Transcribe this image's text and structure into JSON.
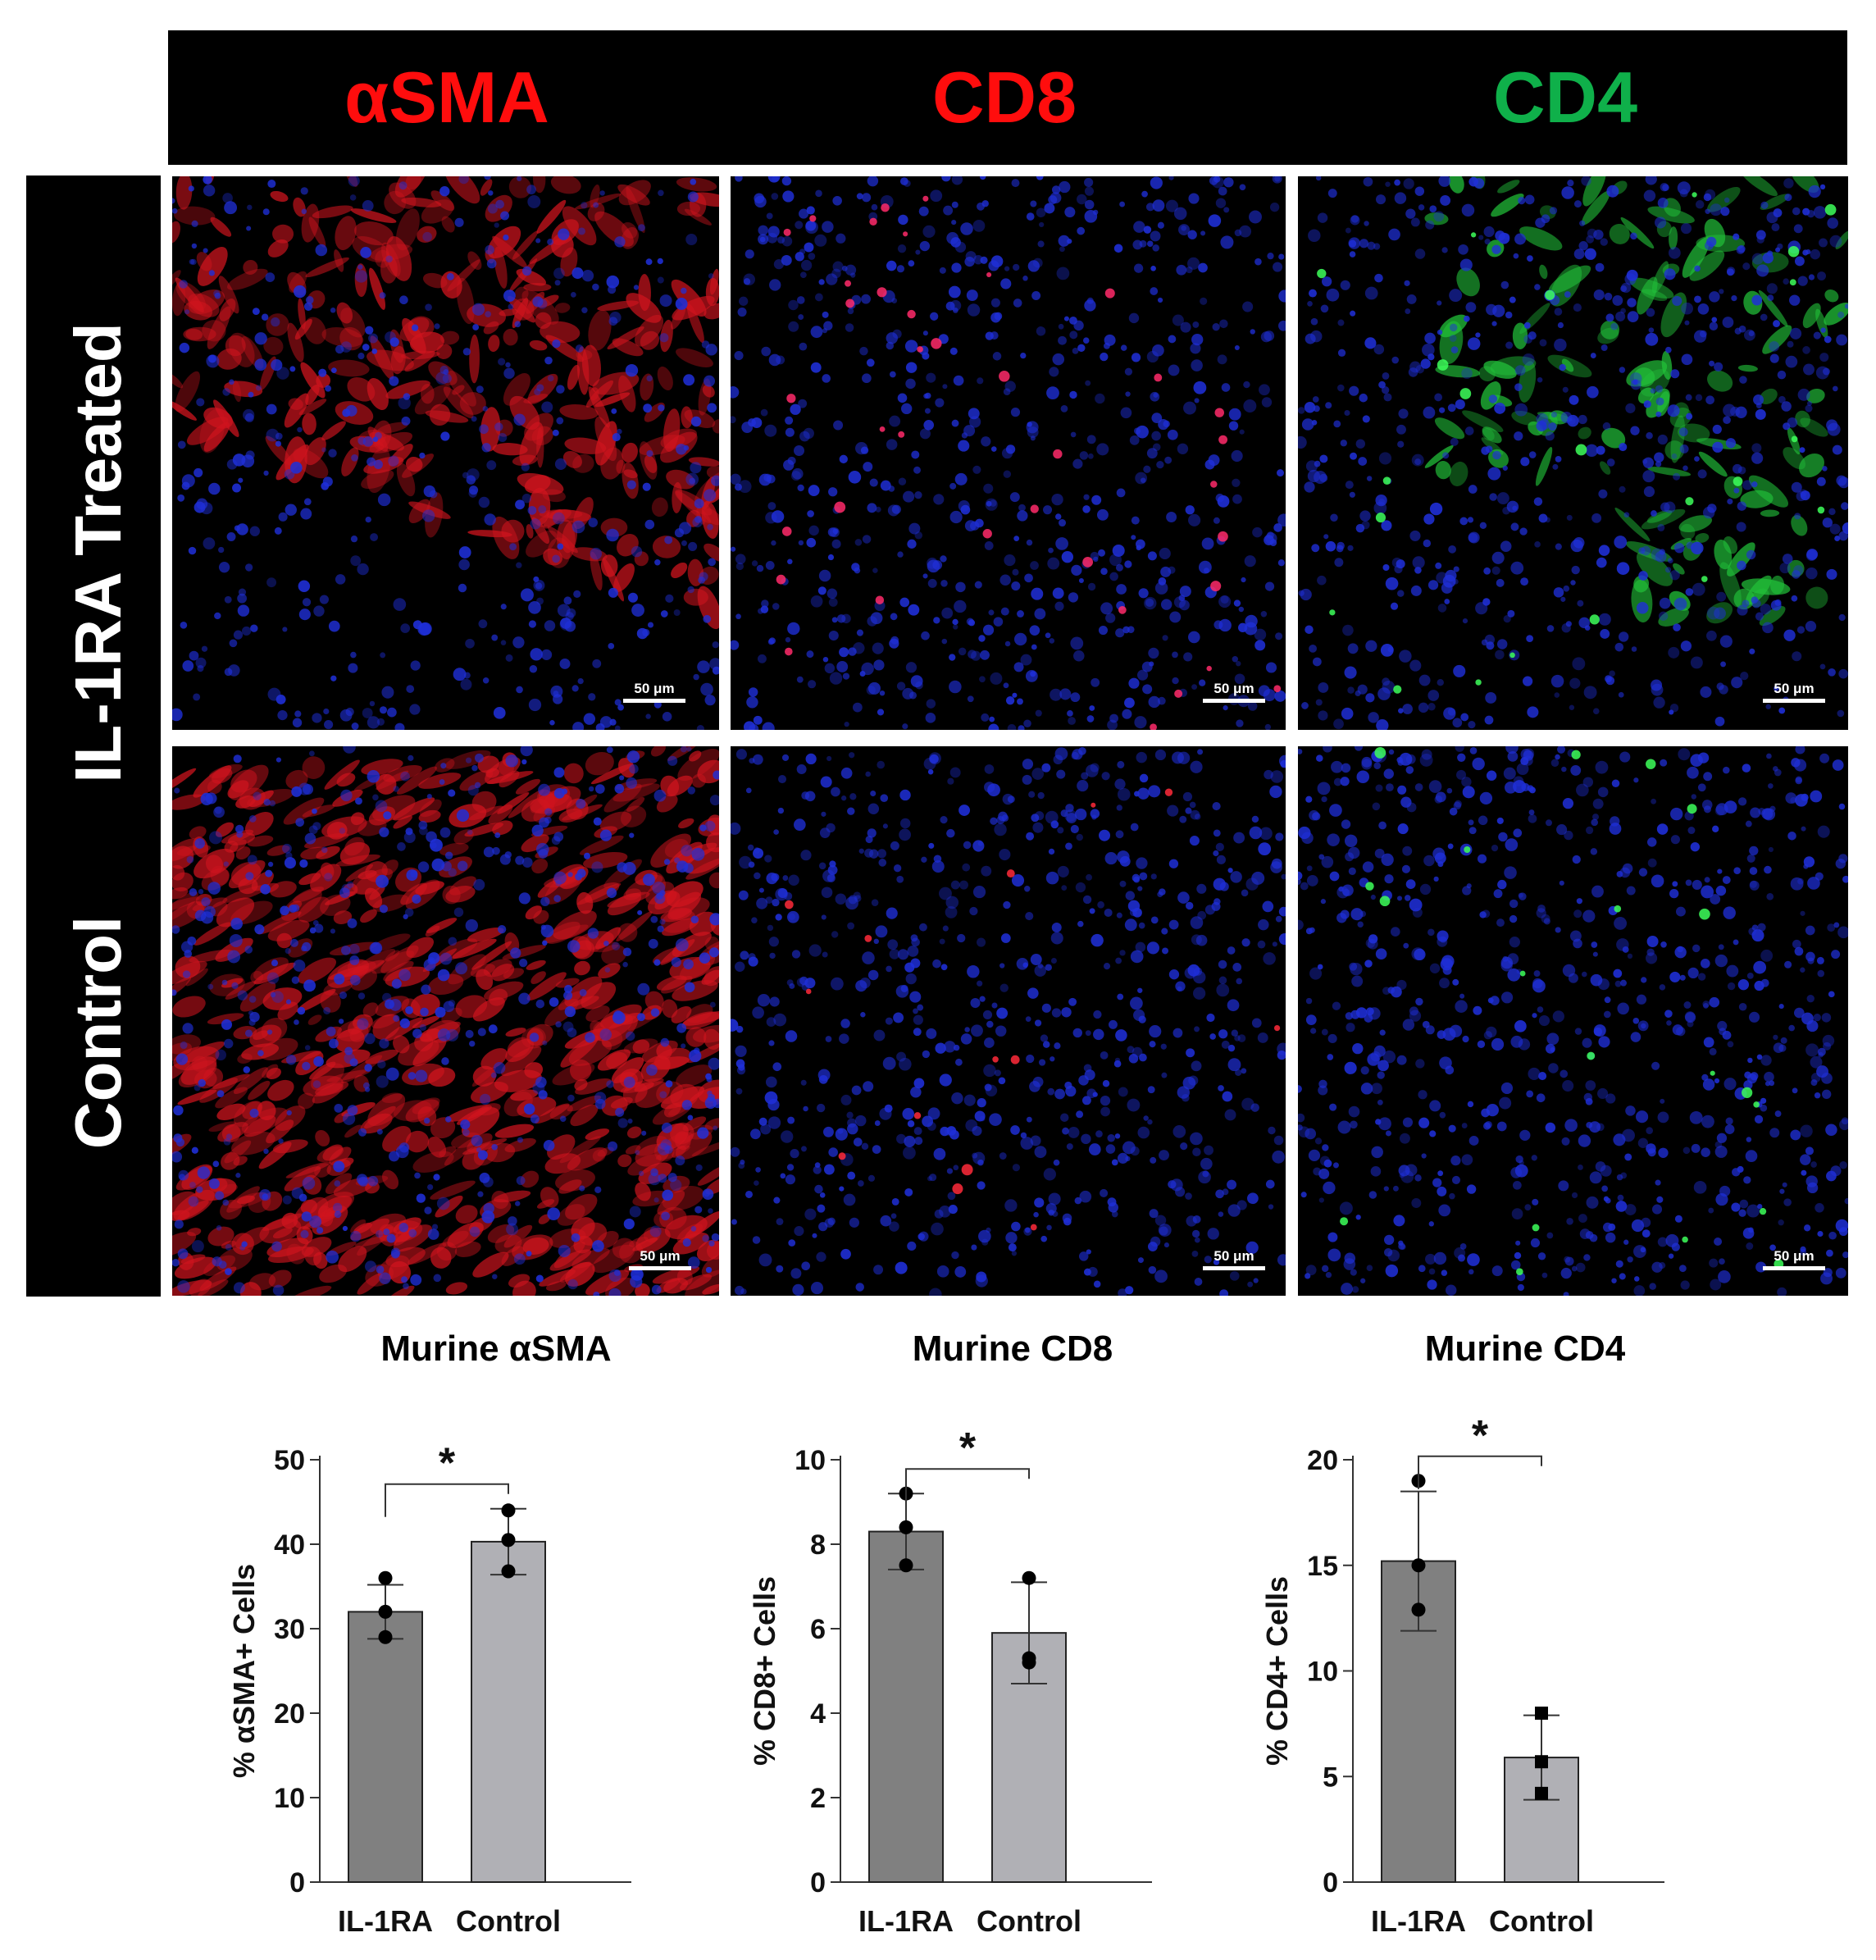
{
  "figure": {
    "columns": [
      {
        "label": "αSMA",
        "color": "#ff0d0d"
      },
      {
        "label": "CD8",
        "color": "#ff0d0d"
      },
      {
        "label": "CD4",
        "color": "#0fb04a"
      }
    ],
    "rows": [
      {
        "label": "IL-1RA Treated"
      },
      {
        "label": "Control"
      }
    ],
    "scale_bar_label": "50 μm"
  },
  "chart_data": [
    {
      "type": "bar",
      "title": "Murine αSMA",
      "ylabel": "% αSMA+ Cells",
      "xlabel": "",
      "categories": [
        "IL-1RA",
        "Control"
      ],
      "values": [
        32,
        40.3
      ],
      "error": [
        3.2,
        3.9
      ],
      "points": [
        [
          36,
          32,
          29
        ],
        [
          44,
          40.5,
          36.8
        ]
      ],
      "markers": [
        "circle",
        "circle"
      ],
      "bar_colors": [
        "#808080",
        "#b0b0b5"
      ],
      "ylim": [
        0,
        50
      ],
      "yticks": [
        0,
        10,
        20,
        30,
        40,
        50
      ],
      "significance": "*"
    },
    {
      "type": "bar",
      "title": "Murine CD8",
      "ylabel": "% CD8+ Cells",
      "xlabel": "",
      "categories": [
        "IL-1RA",
        "Control"
      ],
      "values": [
        8.3,
        5.9
      ],
      "error": [
        0.9,
        1.2
      ],
      "points": [
        [
          9.2,
          8.4,
          7.5
        ],
        [
          7.2,
          5.3,
          5.2
        ]
      ],
      "markers": [
        "circle",
        "circle"
      ],
      "bar_colors": [
        "#808080",
        "#b0b0b5"
      ],
      "ylim": [
        0,
        10
      ],
      "yticks": [
        0,
        2,
        4,
        6,
        8,
        10
      ],
      "significance": "*"
    },
    {
      "type": "bar",
      "title": "Murine CD4",
      "ylabel": "% CD4+ Cells",
      "xlabel": "",
      "categories": [
        "IL-1RA",
        "Control"
      ],
      "values": [
        15.2,
        5.9
      ],
      "error": [
        3.3,
        2.0
      ],
      "points": [
        [
          19,
          15,
          12.9
        ],
        [
          8,
          5.7,
          4.2
        ]
      ],
      "markers": [
        "circle",
        "square"
      ],
      "bar_colors": [
        "#808080",
        "#b0b0b5"
      ],
      "ylim": [
        0,
        20
      ],
      "yticks": [
        0,
        5,
        10,
        15,
        20
      ],
      "significance": "*"
    }
  ]
}
